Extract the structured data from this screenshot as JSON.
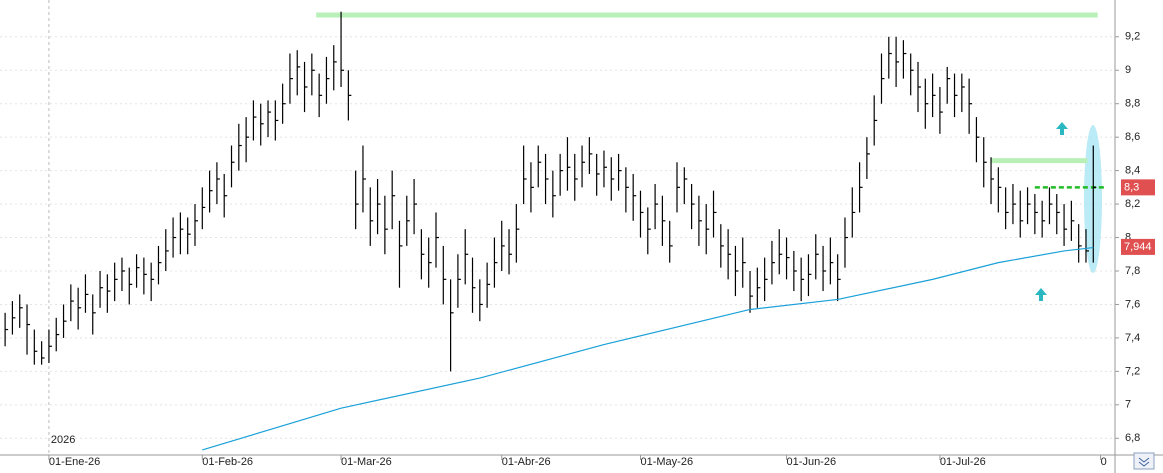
{
  "chart_data": {
    "type": "ohlc",
    "bar_color": "#000000",
    "xlim": [
      -0.7,
      151.7
    ],
    "ylim": [
      6.7,
      9.42
    ],
    "yticks": [
      {
        "value": 6.8,
        "label": "6,8"
      },
      7,
      {
        "value": 7.2,
        "label": "7,2"
      },
      {
        "value": 7.4,
        "label": "7,4"
      },
      {
        "value": 7.6,
        "label": "7,6"
      },
      {
        "value": 7.8,
        "label": "7,8"
      },
      8,
      {
        "value": 8.2,
        "label": "8,2"
      },
      {
        "value": 8.4,
        "label": "8,4"
      },
      {
        "value": 8.6,
        "label": "8,6"
      },
      {
        "value": 8.8,
        "label": "8,8"
      },
      9,
      {
        "value": 9.2,
        "label": "9,2"
      }
    ],
    "xticks": [
      {
        "value": 6,
        "label": "01-Ene-26"
      },
      {
        "value": 27,
        "label": "01-Feb-26"
      },
      {
        "value": 46,
        "label": "01-Mar-26"
      },
      {
        "value": 68,
        "label": "01-Abr-26"
      },
      {
        "value": 87,
        "label": "01-May-26"
      },
      {
        "value": 107,
        "label": "01-Jun-26"
      },
      {
        "value": 128,
        "label": "01-Jul-26"
      },
      {
        "value": 150,
        "label": "0"
      }
    ],
    "year_label": "2026",
    "grid": true,
    "high": [
      7.55,
      7.62,
      7.66,
      7.6,
      7.45,
      7.38,
      7.45,
      7.52,
      7.6,
      7.72,
      7.7,
      7.78,
      7.66,
      7.8,
      7.78,
      7.85,
      7.88,
      7.82,
      7.9,
      7.88,
      7.85,
      7.95,
      8.05,
      8.12,
      8.15,
      8.12,
      8.2,
      8.3,
      8.4,
      8.45,
      8.38,
      8.55,
      8.68,
      8.72,
      8.82,
      8.8,
      8.82,
      8.82,
      8.92,
      9.1,
      9.12,
      9.05,
      9.1,
      8.98,
      9.08,
      9.15,
      9.35,
      9.0,
      8.4,
      8.55,
      8.3,
      8.35,
      8.25,
      8.4,
      8.1,
      8.25,
      8.35,
      8.05,
      8.0,
      8.15,
      7.95,
      7.75,
      7.9,
      8.05,
      7.88,
      7.75,
      7.85,
      8.0,
      8.1,
      8.05,
      8.2,
      8.55,
      8.45,
      8.55,
      8.5,
      8.4,
      8.5,
      8.6,
      8.5,
      8.55,
      8.6,
      8.5,
      8.52,
      8.48,
      8.5,
      8.42,
      8.38,
      8.28,
      8.18,
      8.32,
      8.25,
      8.1,
      8.45,
      8.42,
      8.32,
      8.25,
      8.2,
      8.28,
      8.08,
      8.05,
      7.95,
      8.0,
      7.8,
      7.82,
      7.88,
      7.98,
      8.05,
      8.0,
      7.92,
      7.88,
      7.9,
      8.02,
      7.95,
      8.0,
      7.9,
      8.12,
      8.3,
      8.45,
      8.6,
      8.85,
      9.1,
      9.2,
      9.2,
      9.18,
      9.1,
      9.05,
      8.95,
      8.98,
      8.9,
      9.02,
      8.98,
      8.98,
      8.95,
      8.72,
      8.6,
      8.48,
      8.42,
      8.3,
      8.32,
      8.28,
      8.3,
      8.26,
      8.22,
      8.3,
      8.26,
      8.2,
      8.22,
      8.08,
      8.05,
      8.55
    ],
    "low": [
      7.35,
      7.42,
      7.46,
      7.3,
      7.24,
      7.24,
      7.25,
      7.32,
      7.4,
      7.5,
      7.45,
      7.55,
      7.42,
      7.58,
      7.55,
      7.62,
      7.68,
      7.6,
      7.7,
      7.66,
      7.62,
      7.72,
      7.8,
      7.88,
      7.9,
      7.9,
      7.95,
      8.05,
      8.15,
      8.2,
      8.12,
      8.3,
      8.4,
      8.45,
      8.58,
      8.55,
      8.6,
      8.58,
      8.68,
      8.8,
      8.85,
      8.75,
      8.85,
      8.72,
      8.8,
      8.88,
      8.9,
      8.7,
      8.05,
      8.15,
      7.95,
      8.02,
      7.9,
      8.05,
      7.7,
      7.95,
      8.02,
      7.75,
      7.7,
      7.82,
      7.6,
      7.2,
      7.58,
      7.72,
      7.55,
      7.5,
      7.58,
      7.7,
      7.8,
      7.78,
      7.85,
      8.2,
      8.15,
      8.3,
      8.2,
      8.12,
      8.25,
      8.28,
      8.22,
      8.3,
      8.38,
      8.25,
      8.3,
      8.22,
      8.28,
      8.15,
      8.1,
      8.0,
      7.9,
      8.05,
      7.95,
      7.85,
      8.15,
      8.2,
      8.05,
      7.95,
      7.9,
      8.0,
      7.82,
      7.75,
      7.65,
      7.7,
      7.55,
      7.58,
      7.62,
      7.72,
      7.78,
      7.75,
      7.68,
      7.62,
      7.65,
      7.75,
      7.68,
      7.72,
      7.62,
      7.82,
      8.0,
      8.15,
      8.35,
      8.55,
      8.8,
      8.95,
      8.9,
      8.95,
      8.85,
      8.75,
      8.65,
      8.72,
      8.62,
      8.8,
      8.72,
      8.75,
      8.62,
      8.45,
      8.3,
      8.2,
      8.15,
      8.05,
      8.08,
      8.0,
      8.08,
      8.02,
      8.0,
      8.08,
      8.02,
      7.95,
      7.98,
      7.85,
      7.85,
      7.85
    ],
    "close": [
      7.45,
      7.52,
      7.58,
      7.48,
      7.32,
      7.28,
      7.35,
      7.42,
      7.5,
      7.62,
      7.58,
      7.66,
      7.55,
      7.7,
      7.68,
      7.75,
      7.8,
      7.72,
      7.82,
      7.78,
      7.75,
      7.85,
      7.92,
      8.0,
      8.05,
      8.02,
      8.1,
      8.18,
      8.28,
      8.35,
      8.25,
      8.45,
      8.55,
      8.6,
      8.72,
      8.68,
      8.75,
      8.7,
      8.8,
      8.95,
      9.02,
      8.9,
      9.0,
      8.85,
      8.95,
      9.05,
      9.0,
      8.85,
      8.2,
      8.35,
      8.1,
      8.2,
      8.05,
      8.25,
      7.95,
      8.1,
      8.2,
      7.9,
      7.85,
      8.0,
      7.75,
      7.55,
      7.75,
      7.9,
      7.7,
      7.6,
      7.72,
      7.85,
      7.95,
      7.9,
      8.05,
      8.35,
      8.3,
      8.45,
      8.35,
      8.25,
      8.4,
      8.42,
      8.35,
      8.45,
      8.5,
      8.38,
      8.42,
      8.35,
      8.4,
      8.3,
      8.25,
      8.15,
      8.05,
      8.2,
      8.1,
      7.95,
      8.3,
      8.35,
      8.2,
      8.1,
      8.05,
      8.15,
      7.95,
      7.9,
      7.8,
      7.85,
      7.65,
      7.7,
      7.75,
      7.85,
      7.9,
      7.88,
      7.8,
      7.75,
      7.78,
      7.9,
      7.8,
      7.85,
      7.75,
      8.0,
      8.15,
      8.3,
      8.5,
      8.7,
      8.95,
      9.1,
      9.05,
      9.1,
      9.0,
      8.9,
      8.8,
      8.85,
      8.75,
      8.95,
      8.85,
      8.9,
      8.8,
      8.6,
      8.45,
      8.35,
      8.3,
      8.15,
      8.2,
      8.1,
      8.2,
      8.15,
      8.1,
      8.2,
      8.15,
      8.05,
      8.1,
      7.95,
      7.92,
      8.3
    ],
    "moving_average": {
      "color": "#1aa0d8",
      "x": [
        27,
        46,
        65,
        82,
        102,
        114,
        127,
        136,
        145,
        149
      ],
      "values": [
        6.73,
        6.98,
        7.16,
        7.36,
        7.57,
        7.63,
        7.75,
        7.85,
        7.92,
        7.94
      ]
    },
    "levels": [
      {
        "value": 9.33,
        "x": [
          42.6,
          149.6
        ],
        "color": "#b8f0b8",
        "style": "solid"
      },
      {
        "value": 8.46,
        "x": [
          135,
          148.2
        ],
        "color": "#b8f0b8",
        "style": "solid"
      },
      {
        "value": 8.3,
        "x": [
          141,
          150.5
        ],
        "color": "#22bb22",
        "style": "dashed"
      }
    ],
    "price_tags": [
      {
        "value": 8.3,
        "label": "8,3",
        "color": "#e05050"
      },
      {
        "value": 7.944,
        "label": "7,944",
        "color": "#e05050"
      }
    ]
  }
}
